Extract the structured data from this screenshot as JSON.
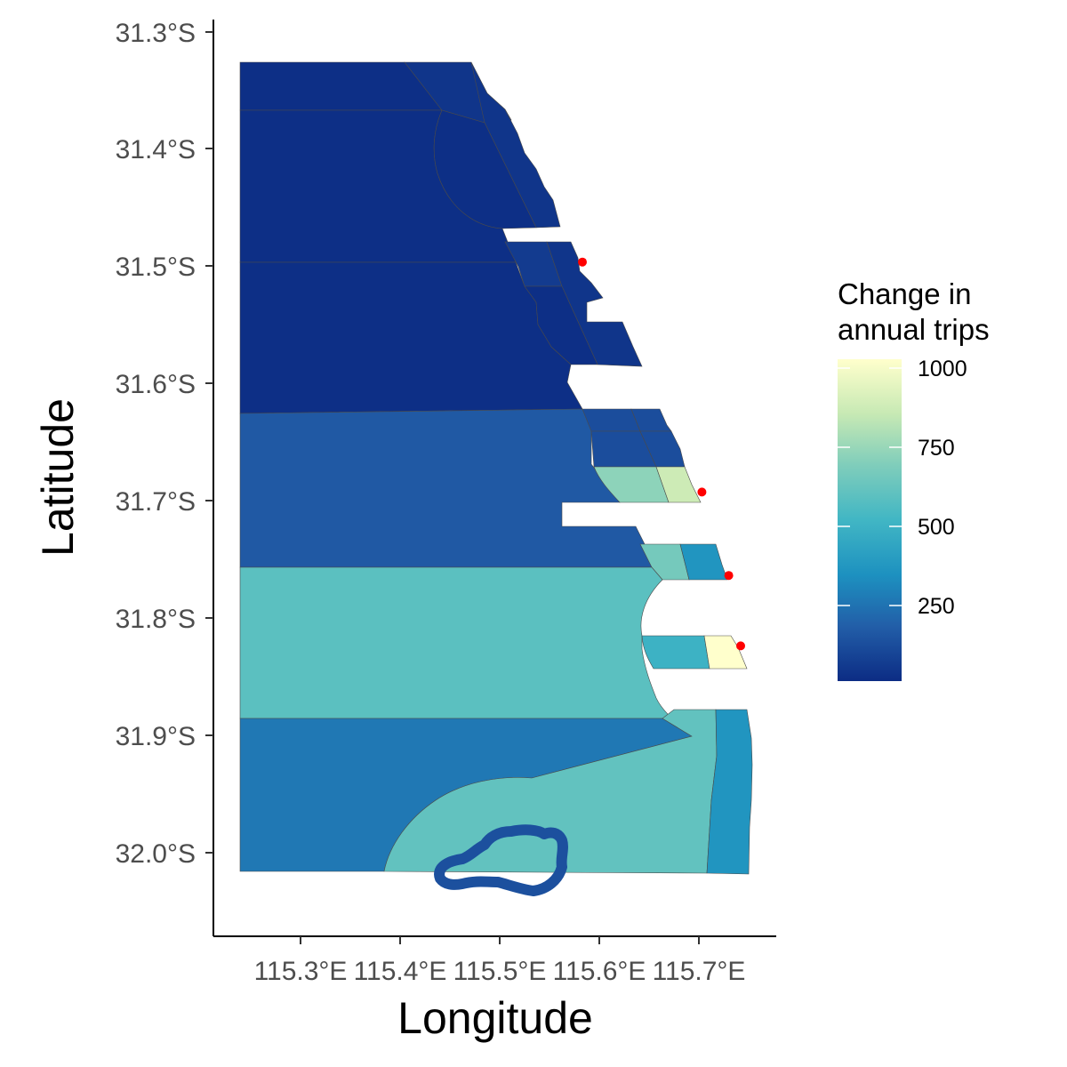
{
  "axes": {
    "x_title": "Longitude",
    "y_title": "Latitude",
    "x_ticks": [
      "115.3°E",
      "115.4°E",
      "115.5°E",
      "115.6°E",
      "115.7°E"
    ],
    "y_ticks": [
      "31.3°S",
      "31.4°S",
      "31.5°S",
      "31.6°S",
      "31.7°S",
      "31.8°S",
      "31.9°S",
      "32.0°S"
    ]
  },
  "legend": {
    "title_line1": "Change in",
    "title_line2": "annual trips",
    "labels": [
      "1000",
      "750",
      "500",
      "250"
    ],
    "colors": [
      "#0c2c84",
      "#225ea8",
      "#1d91c0",
      "#41b6c4",
      "#7fcdbb",
      "#c7e9b4",
      "#ffffcc"
    ]
  },
  "zones": [
    {
      "id": "offshore-north",
      "trips": 10
    },
    {
      "id": "offshore-mid-north",
      "trips": 30
    },
    {
      "id": "offshore-central",
      "trips": 150
    },
    {
      "id": "offshore-south-central",
      "trips": 570
    },
    {
      "id": "offshore-south",
      "trips": 250
    },
    {
      "id": "rottnest-shelf",
      "trips": 590
    },
    {
      "id": "nearshore-south-strip",
      "trips": 350
    },
    {
      "id": "rottnest-island-outline",
      "trips": 120
    },
    {
      "id": "nearshore-two-rocks",
      "trips": 30
    },
    {
      "id": "nearshore-yanchep",
      "trips": 50
    },
    {
      "id": "nearshore-quinns",
      "trips": 110
    },
    {
      "id": "nearshore-ocean-reef-offshore",
      "trips": 700
    },
    {
      "id": "nearshore-ocean-reef-inshore",
      "trips": 850
    },
    {
      "id": "nearshore-hillarys-offshore",
      "trips": 640
    },
    {
      "id": "nearshore-hillarys-inshore",
      "trips": 350
    },
    {
      "id": "nearshore-trigg-offshore",
      "trips": 480
    },
    {
      "id": "nearshore-trigg-inshore",
      "trips": 1000
    }
  ],
  "ramp_points": [
    {
      "lon": 115.583,
      "lat": -31.496
    },
    {
      "lon": 115.703,
      "lat": -31.692
    },
    {
      "lon": 115.73,
      "lat": -31.763
    },
    {
      "lon": 115.742,
      "lat": -31.823
    }
  ],
  "point_color": "#ff0000"
}
